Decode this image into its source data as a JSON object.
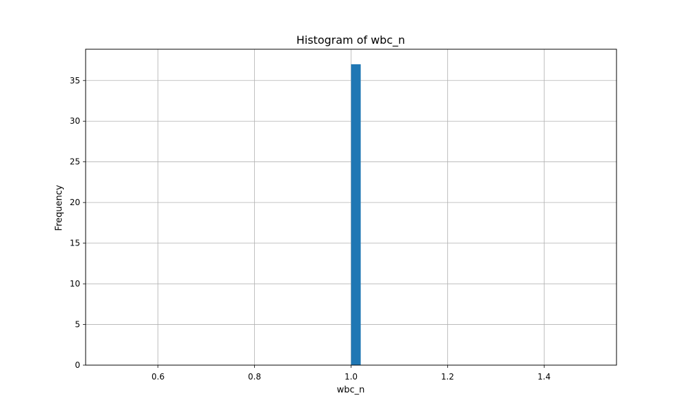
{
  "chart_data": {
    "type": "bar",
    "title": "Histogram of wbc_n",
    "xlabel": "wbc_n",
    "ylabel": "Frequency",
    "xlim": [
      0.45,
      1.55
    ],
    "ylim": [
      0,
      38.85
    ],
    "x_ticks": [
      0.6,
      0.8,
      1.0,
      1.2,
      1.4
    ],
    "x_tick_labels": [
      "0.6",
      "0.8",
      "1.0",
      "1.2",
      "1.4"
    ],
    "y_ticks": [
      0,
      5,
      10,
      15,
      20,
      25,
      30,
      35
    ],
    "y_tick_labels": [
      "0",
      "5",
      "10",
      "15",
      "20",
      "25",
      "30",
      "35"
    ],
    "bins": [
      {
        "x0": 1.0,
        "x1": 1.02,
        "value": 37
      }
    ],
    "grid": true,
    "colors": {
      "bar": "#1f77b4",
      "grid": "#b0b0b0",
      "axes": "#000000"
    }
  }
}
